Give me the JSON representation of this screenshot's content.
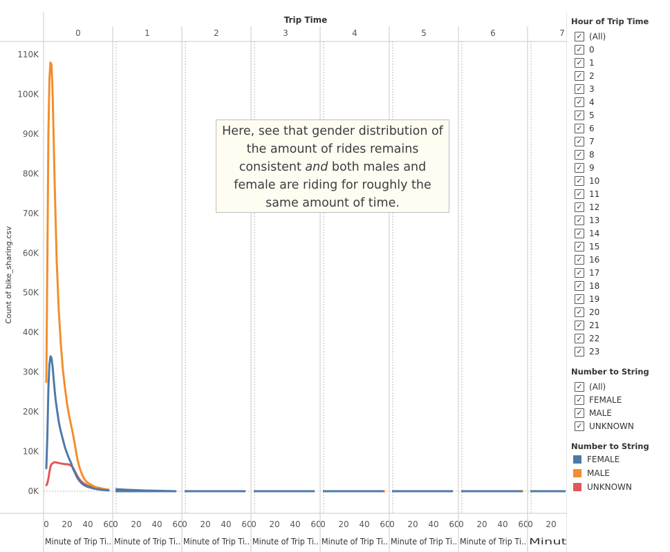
{
  "chart_data": {
    "type": "line",
    "title": "Trip Time",
    "ylabel": "Count of bike_sharing.csv",
    "xlabel": "Minute of Trip Ti..",
    "xlabel_last": "Minute o..",
    "panels": [
      "0",
      "1",
      "2",
      "3",
      "4",
      "5",
      "6",
      "7"
    ],
    "ylim": [
      0,
      115000
    ],
    "y_ticks": [
      0,
      10000,
      20000,
      30000,
      40000,
      50000,
      60000,
      70000,
      80000,
      90000,
      100000,
      110000
    ],
    "y_tick_labels": [
      "0K",
      "10K",
      "20K",
      "30K",
      "40K",
      "50K",
      "60K",
      "70K",
      "80K",
      "90K",
      "100K",
      "110K"
    ],
    "x_ticks": [
      0,
      20,
      40,
      60
    ],
    "x_tick_labels": [
      "0",
      "20",
      "40",
      "60"
    ],
    "grid": false,
    "x": [
      0,
      1,
      2,
      3,
      4,
      5,
      6,
      7,
      8,
      9,
      10,
      12,
      14,
      16,
      18,
      20,
      22,
      24,
      26,
      28,
      30,
      32,
      34,
      36,
      38,
      40,
      42,
      44,
      46,
      48,
      50,
      55,
      60
    ],
    "series": [
      {
        "name": "MALE",
        "color": "#f28e2b",
        "values": [
          27500,
          58000,
          90000,
          104000,
          108000,
          107500,
          101000,
          90000,
          78000,
          68000,
          58000,
          45500,
          37000,
          30500,
          26000,
          22000,
          19000,
          16500,
          14000,
          11000,
          8000,
          6000,
          4500,
          3300,
          2600,
          2100,
          1800,
          1500,
          1200,
          1000,
          900,
          600,
          400
        ]
      },
      {
        "name": "FEMALE",
        "color": "#4e79a7",
        "values": [
          5800,
          14000,
          26000,
          32000,
          34000,
          33500,
          31500,
          28500,
          25500,
          23000,
          21000,
          17500,
          15000,
          13000,
          11000,
          9500,
          8200,
          7000,
          5500,
          4400,
          3300,
          2600,
          2000,
          1600,
          1300,
          1100,
          950,
          800,
          650,
          550,
          450,
          300,
          200
        ]
      },
      {
        "name": "UNKNOWN",
        "color": "#e15759",
        "values": [
          1500,
          2000,
          3200,
          4800,
          6200,
          6800,
          7000,
          7200,
          7300,
          7300,
          7200,
          7100,
          7000,
          6900,
          6800,
          6800,
          6700,
          6400,
          5800,
          4800,
          3800,
          3000,
          2400,
          2000,
          1700,
          1400,
          1200,
          1000,
          850,
          700,
          550,
          350,
          200
        ]
      }
    ],
    "tail_panels_value": 0,
    "annotation_lines": [
      "Here, see that gender distribution of",
      "the amount of rides remains",
      "consistent",
      "and",
      "both males and",
      "female are riding for roughly the",
      "same amount of time."
    ]
  },
  "filter_hour": {
    "title": "Hour of Trip Time",
    "items": [
      "(All)",
      "0",
      "1",
      "2",
      "3",
      "4",
      "5",
      "6",
      "7",
      "8",
      "9",
      "10",
      "11",
      "12",
      "13",
      "14",
      "15",
      "16",
      "17",
      "18",
      "19",
      "20",
      "21",
      "22",
      "23"
    ]
  },
  "filter_gender": {
    "title": "Number to String",
    "items": [
      "(All)",
      "FEMALE",
      "MALE",
      "UNKNOWN"
    ]
  },
  "legend": {
    "title": "Number to String",
    "items": [
      {
        "label": "FEMALE",
        "color": "#4e79a7"
      },
      {
        "label": "MALE",
        "color": "#f28e2b"
      },
      {
        "label": "UNKNOWN",
        "color": "#e15759"
      }
    ]
  },
  "check_glyph": "✓"
}
